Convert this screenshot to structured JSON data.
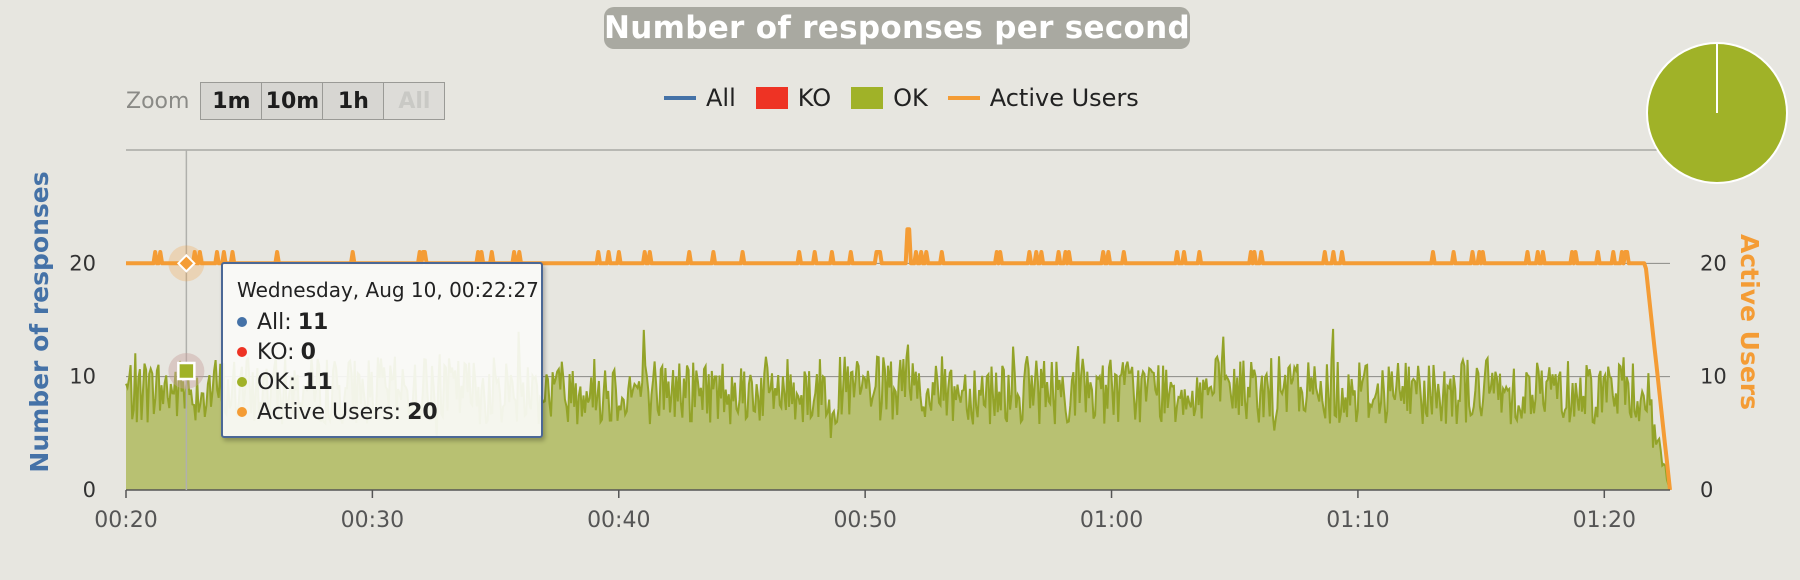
{
  "chart_data": {
    "type": "area",
    "title": "Number of responses per second",
    "xlabel": "",
    "ylabel": "Number of responses",
    "y2label": "Active Users",
    "x_ticks": [
      "00:20",
      "00:30",
      "00:40",
      "00:50",
      "01:00",
      "01:10",
      "01:20"
    ],
    "x_range": [
      "00:20",
      "01:22:40"
    ],
    "y_ticks": [
      0,
      10,
      20
    ],
    "ylim": [
      0,
      30
    ],
    "y2_ticks": [
      0,
      10,
      20
    ],
    "y2lim": [
      0,
      30
    ],
    "grid": true,
    "legend": "top-center",
    "series": [
      {
        "name": "All",
        "color": "#4572a7"
      },
      {
        "name": "KO",
        "color": "#ff0000"
      },
      {
        "name": "OK",
        "color": "#a0b228",
        "mean": 8.8,
        "min": 2,
        "max": 16
      },
      {
        "name": "Active Users",
        "color": "#f49c35",
        "baseline": 20,
        "spikes_to": 21,
        "max": 23,
        "ramp_down": [
          "01:21:40",
          "01:22:40"
        ]
      }
    ],
    "pie": {
      "slices": [
        {
          "name": "OK",
          "value": 100,
          "color": "#a0b228"
        },
        {
          "name": "KO",
          "value": 0,
          "color": "#ff0000"
        }
      ]
    }
  },
  "zoom": {
    "label": "Zoom",
    "buttons": [
      "1m",
      "10m",
      "1h",
      "All"
    ],
    "disabled": "All"
  },
  "legend": [
    {
      "name": "All",
      "color": "#4572a7",
      "symbol": "line"
    },
    {
      "name": "KO",
      "color": "#ff0000",
      "symbol": "box"
    },
    {
      "name": "OK",
      "color": "#a0b228",
      "symbol": "box"
    },
    {
      "name": "Active Users",
      "color": "#f49c35",
      "symbol": "line"
    }
  ],
  "tooltip": {
    "date": "Wednesday, Aug 10, 00:22:27",
    "rows": [
      {
        "label": "All:",
        "value": "11",
        "color": "#4572a7"
      },
      {
        "label": "KO:",
        "value": "0",
        "color": "#ff0000"
      },
      {
        "label": "OK:",
        "value": "11",
        "color": "#a0b228"
      },
      {
        "label": "Active Users:",
        "value": "20",
        "color": "#f49c35"
      }
    ]
  },
  "colors": {
    "background": "#e7e6e0",
    "left_axis": "#4572a7",
    "right_axis": "#f49c35",
    "title_bg": "#a9a9a1"
  }
}
